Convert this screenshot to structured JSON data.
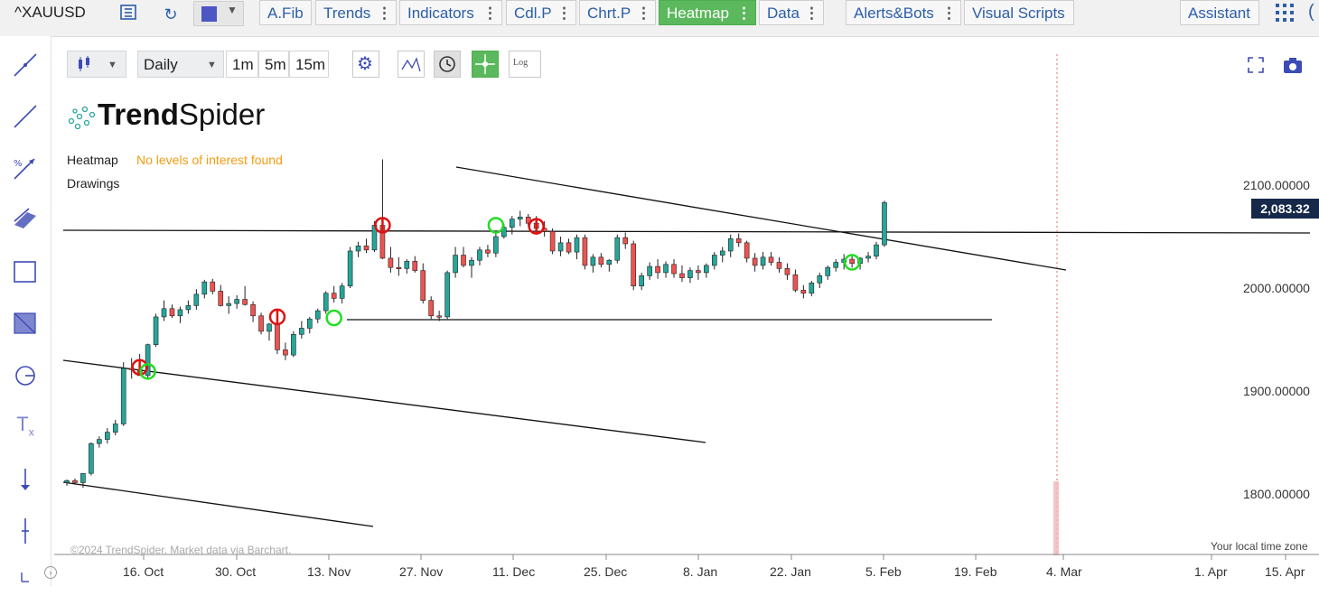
{
  "toolbar": {
    "ticker": "^XAUUSD",
    "buttons": [
      {
        "label": "A.Fib",
        "dots": false
      },
      {
        "label": "Trends",
        "dots": true
      },
      {
        "label": "Indicators",
        "dots": true
      },
      {
        "label": "Cdl.P",
        "dots": true
      },
      {
        "label": "Chrt.P",
        "dots": true
      },
      {
        "label": "Heatmap",
        "dots": true,
        "active": true
      },
      {
        "label": "Data",
        "dots": true
      },
      {
        "label": "Alerts&Bots",
        "dots": true
      },
      {
        "label": "Visual Scripts",
        "dots": false
      }
    ],
    "assistant": "Assistant",
    "dots_glyph": "⋮"
  },
  "controls": {
    "interval": "Daily",
    "interval_options": [
      "1m",
      "5m",
      "15m"
    ],
    "log_label": "Log"
  },
  "brand": {
    "bold": "Trend",
    "light": "Spider"
  },
  "overlays": {
    "heatmap_label": "Heatmap",
    "heatmap_status": "No levels of interest found",
    "drawings_label": "Drawings",
    "copyright": "©2024 TrendSpider. Market data via Barchart.",
    "timezone": "Your local time zone"
  },
  "colors": {
    "up": "#26a69a",
    "down": "#ef5350",
    "active": "#5cb85c",
    "accent": "#2c5ea8",
    "tag": "#16294a"
  },
  "price": {
    "last": "2,083.32"
  },
  "chart_data": {
    "type": "candlestick",
    "y_ticks": [
      "2100.00000",
      "2000.00000",
      "1900.00000",
      "1800.00000"
    ],
    "x_ticks": [
      "16. Oct",
      "30. Oct",
      "13. Nov",
      "27. Nov",
      "11. Dec",
      "25. Dec",
      "8. Jan",
      "22. Jan",
      "5. Feb",
      "19. Feb",
      "4. Mar",
      "1. Apr",
      "15. Apr"
    ],
    "ylim": [
      1770,
      2145
    ],
    "candles": [
      [
        1811,
        1814,
        1808,
        1813
      ],
      [
        1813,
        1815,
        1809,
        1811
      ],
      [
        1811,
        1818,
        1806,
        1820
      ],
      [
        1820,
        1850,
        1818,
        1849
      ],
      [
        1849,
        1856,
        1845,
        1853
      ],
      [
        1853,
        1864,
        1849,
        1860
      ],
      [
        1860,
        1872,
        1857,
        1868
      ],
      [
        1868,
        1928,
        1866,
        1922
      ],
      [
        1922,
        1932,
        1912,
        1921
      ],
      [
        1921,
        1936,
        1916,
        1915
      ],
      [
        1915,
        1946,
        1912,
        1945
      ],
      [
        1945,
        1975,
        1943,
        1972
      ],
      [
        1972,
        1988,
        1968,
        1980
      ],
      [
        1980,
        1984,
        1971,
        1973
      ],
      [
        1973,
        1982,
        1966,
        1979
      ],
      [
        1979,
        1988,
        1975,
        1983
      ],
      [
        1983,
        1999,
        1979,
        1994
      ],
      [
        1994,
        2008,
        1990,
        2006
      ],
      [
        2006,
        2009,
        1994,
        1997
      ],
      [
        1997,
        2003,
        1982,
        1983
      ],
      [
        1983,
        1992,
        1975,
        1985
      ],
      [
        1985,
        1993,
        1980,
        1989
      ],
      [
        1989,
        2002,
        1983,
        1984
      ],
      [
        1984,
        1987,
        1967,
        1973
      ],
      [
        1973,
        1976,
        1955,
        1958
      ],
      [
        1958,
        1966,
        1949,
        1965
      ],
      [
        1965,
        1968,
        1936,
        1940
      ],
      [
        1940,
        1947,
        1930,
        1935
      ],
      [
        1935,
        1958,
        1933,
        1955
      ],
      [
        1955,
        1968,
        1951,
        1961
      ],
      [
        1961,
        1972,
        1956,
        1970
      ],
      [
        1970,
        1980,
        1966,
        1978
      ],
      [
        1978,
        1997,
        1975,
        1995
      ],
      [
        1995,
        2002,
        1986,
        1990
      ],
      [
        1990,
        2005,
        1985,
        2002
      ],
      [
        2002,
        2040,
        2000,
        2036
      ],
      [
        2036,
        2045,
        2030,
        2041
      ],
      [
        2041,
        2048,
        2034,
        2037
      ],
      [
        2037,
        2065,
        2035,
        2061
      ],
      [
        2061,
        2125,
        2028,
        2029
      ],
      [
        2029,
        2040,
        2015,
        2020
      ],
      [
        2020,
        2030,
        2012,
        2019
      ],
      [
        2019,
        2028,
        2014,
        2026
      ],
      [
        2026,
        2031,
        2015,
        2017
      ],
      [
        2017,
        2024,
        1985,
        1988
      ],
      [
        1988,
        1992,
        1970,
        1973
      ],
      [
        1973,
        1978,
        1968,
        1972
      ],
      [
        1972,
        2017,
        1970,
        2015
      ],
      [
        2015,
        2040,
        2010,
        2032
      ],
      [
        2032,
        2040,
        2020,
        2022
      ],
      [
        2022,
        2030,
        2010,
        2027
      ],
      [
        2027,
        2040,
        2022,
        2037
      ],
      [
        2037,
        2042,
        2030,
        2034
      ],
      [
        2034,
        2054,
        2030,
        2050
      ],
      [
        2050,
        2062,
        2048,
        2059
      ],
      [
        2059,
        2070,
        2052,
        2067
      ],
      [
        2067,
        2075,
        2060,
        2069
      ],
      [
        2069,
        2072,
        2060,
        2063
      ],
      [
        2063,
        2070,
        2055,
        2058
      ],
      [
        2058,
        2065,
        2050,
        2055
      ],
      [
        2055,
        2058,
        2033,
        2036
      ],
      [
        2036,
        2050,
        2031,
        2044
      ],
      [
        2044,
        2048,
        2033,
        2035
      ],
      [
        2035,
        2052,
        2028,
        2049
      ],
      [
        2049,
        2052,
        2018,
        2022
      ],
      [
        2022,
        2033,
        2015,
        2030
      ],
      [
        2030,
        2034,
        2020,
        2023
      ],
      [
        2023,
        2028,
        2016,
        2027
      ],
      [
        2027,
        2052,
        2024,
        2049
      ],
      [
        2049,
        2054,
        2038,
        2043
      ],
      [
        2043,
        2046,
        1998,
        2002
      ],
      [
        2002,
        2015,
        1998,
        2012
      ],
      [
        2012,
        2025,
        2008,
        2021
      ],
      [
        2021,
        2028,
        2009,
        2015
      ],
      [
        2015,
        2026,
        2010,
        2023
      ],
      [
        2023,
        2028,
        2010,
        2014
      ],
      [
        2014,
        2022,
        2006,
        2010
      ],
      [
        2010,
        2020,
        2005,
        2017
      ],
      [
        2017,
        2022,
        2008,
        2015
      ],
      [
        2015,
        2024,
        2010,
        2022
      ],
      [
        2022,
        2035,
        2018,
        2032
      ],
      [
        2032,
        2040,
        2025,
        2036
      ],
      [
        2036,
        2052,
        2030,
        2048
      ],
      [
        2048,
        2053,
        2040,
        2044
      ],
      [
        2044,
        2046,
        2025,
        2029
      ],
      [
        2029,
        2034,
        2016,
        2022
      ],
      [
        2022,
        2035,
        2018,
        2030
      ],
      [
        2030,
        2035,
        2022,
        2025
      ],
      [
        2025,
        2030,
        2015,
        2019
      ],
      [
        2019,
        2024,
        2008,
        2013
      ],
      [
        2013,
        2018,
        1996,
        1998
      ],
      [
        1998,
        2003,
        1990,
        1995
      ],
      [
        1995,
        2007,
        1992,
        2005
      ],
      [
        2005,
        2015,
        2000,
        2012
      ],
      [
        2012,
        2022,
        2008,
        2020
      ],
      [
        2020,
        2028,
        2016,
        2025
      ],
      [
        2025,
        2033,
        2018,
        2028
      ],
      [
        2028,
        2033,
        2020,
        2024
      ],
      [
        2024,
        2030,
        2018,
        2029
      ],
      [
        2029,
        2035,
        2025,
        2031
      ],
      [
        2031,
        2045,
        2028,
        2042
      ],
      [
        2042,
        2085,
        2040,
        2083
      ]
    ],
    "signals": [
      {
        "i": 9,
        "price": 1923,
        "kind": "sell"
      },
      {
        "i": 10,
        "price": 1919,
        "kind": "buy"
      },
      {
        "i": 26,
        "price": 1972,
        "kind": "sell"
      },
      {
        "i": 33,
        "price": 1971,
        "kind": "buy"
      },
      {
        "i": 39,
        "price": 2061,
        "kind": "sell"
      },
      {
        "i": 53,
        "price": 2061,
        "kind": "buy"
      },
      {
        "i": 58,
        "price": 2060,
        "kind": "sell"
      },
      {
        "i": 97,
        "price": 2025,
        "kind": "buy"
      }
    ]
  }
}
